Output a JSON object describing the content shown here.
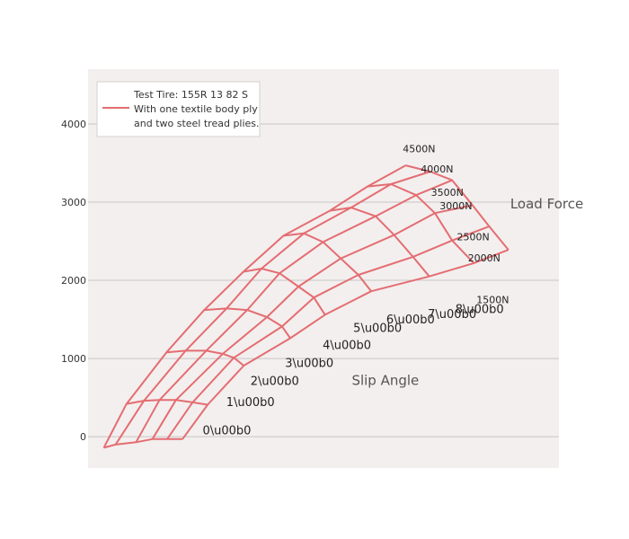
{
  "chart_data": {
    "type": "line",
    "title": "",
    "xlabel": "",
    "ylabel": "",
    "x_axis": {
      "visible": false,
      "range": [
        -100,
        2900
      ]
    },
    "y_axis": {
      "range": [
        -400,
        4700
      ],
      "ticks": [
        0,
        1000,
        2000,
        3000,
        4000
      ]
    },
    "grid": {
      "y": true,
      "x": false
    },
    "legend": {
      "placement": "top-left",
      "lines": [
        "Test Tire: 155R 13 82 S",
        "With one textile body ply",
        "and two steel tread plies."
      ]
    },
    "colors": {
      "series": "#e46d72",
      "plot_bg": "#f3efee",
      "grid": "#c9c5c4",
      "text": "#333333"
    },
    "annotations": [
      {
        "text": "Load Force",
        "x": 2590,
        "y": 2920,
        "size": "large"
      },
      {
        "text": "Slip Angle",
        "x": 1580,
        "y": 665,
        "size": "large"
      }
    ],
    "slip_labels": [
      {
        "text": "0\\u00b0",
        "x": 630,
        "y": 30
      },
      {
        "text": "1\\u00b0",
        "x": 780,
        "y": 390
      },
      {
        "text": "2\\u00b0",
        "x": 935,
        "y": 660
      },
      {
        "text": "3\\u00b0",
        "x": 1155,
        "y": 890
      },
      {
        "text": "4\\u00b0",
        "x": 1395,
        "y": 1120
      },
      {
        "text": "5\\u00b0",
        "x": 1590,
        "y": 1340
      },
      {
        "text": "6\\u00b0",
        "x": 1800,
        "y": 1450
      },
      {
        "text": "7\\u00b0",
        "x": 2065,
        "y": 1520
      },
      {
        "text": "8\\u00b0",
        "x": 2240,
        "y": 1580
      }
    ],
    "load_labels": [
      {
        "text": "1500N",
        "x": 2375,
        "y": 1710
      },
      {
        "text": "2000N",
        "x": 2320,
        "y": 2240
      },
      {
        "text": "2500N",
        "x": 2250,
        "y": 2510
      },
      {
        "text": "3000N",
        "x": 2140,
        "y": 2910
      },
      {
        "text": "3500N",
        "x": 2085,
        "y": 3080
      },
      {
        "text": "4000N",
        "x": 2020,
        "y": 3380
      },
      {
        "text": "4500N",
        "x": 1905,
        "y": 3640
      }
    ],
    "carpet": {
      "x": [
        [
          0,
          75,
          206,
          310,
          404,
          502
        ],
        [
          145,
          256,
          355,
          460,
          566,
          662
        ],
        [
          400,
          522,
          653,
          758,
          829,
          892
        ],
        [
          640,
          782,
          914,
          1040,
          1136,
          1188
        ],
        [
          890,
          1005,
          1120,
          1240,
          1339,
          1410
        ],
        [
          1145,
          1275,
          1397,
          1510,
          1622,
          1704
        ],
        [
          1440,
          1576,
          1732,
          1850,
          1970,
          2074
        ],
        [
          1680,
          1830,
          1990,
          2110,
          2220,
          2358
        ],
        [
          1924,
          2080,
          2220,
          2350,
          2456,
          2578
        ]
      ],
      "y": [
        [
          -140,
          -100,
          -70,
          -30,
          -30,
          -30
        ],
        [
          420,
          460,
          470,
          470,
          440,
          410
        ],
        [
          1080,
          1100,
          1100,
          1060,
          1010,
          910
        ],
        [
          1620,
          1640,
          1620,
          1530,
          1410,
          1260
        ],
        [
          2110,
          2150,
          2090,
          1920,
          1780,
          1560
        ],
        [
          2570,
          2600,
          2490,
          2280,
          2070,
          1860
        ],
        [
          2890,
          2930,
          2820,
          2580,
          2300,
          2050
        ],
        [
          3200,
          3230,
          3090,
          2860,
          2510,
          2220
        ],
        [
          3470,
          3390,
          3280,
          2960,
          2690,
          2390
        ]
      ]
    }
  }
}
